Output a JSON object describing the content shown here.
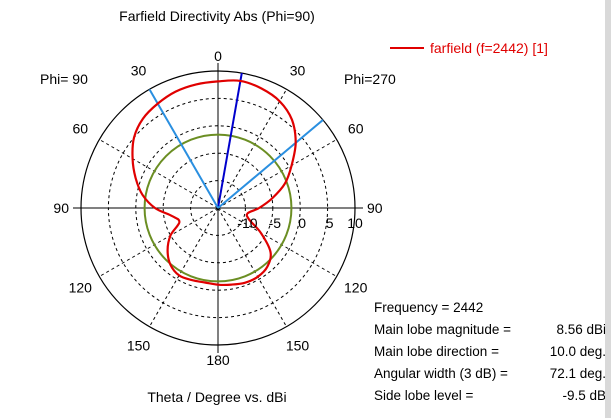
{
  "chart_data": {
    "type": "polar",
    "title": "Farfield Directivity Abs (Phi=90)",
    "footer": "Theta / Degree vs. dBi",
    "left_phi_label": "Phi= 90",
    "right_phi_label": "Phi=270",
    "angle_labels": [
      {
        "text": "0",
        "angle": 0
      },
      {
        "text": "30",
        "angle": 30
      },
      {
        "text": "60",
        "angle": 60
      },
      {
        "text": "90",
        "angle": 90
      },
      {
        "text": "120",
        "angle": 120
      },
      {
        "text": "150",
        "angle": 150
      },
      {
        "text": "180",
        "angle": 180
      },
      {
        "text": "150",
        "angle": -150
      },
      {
        "text": "120",
        "angle": -120
      },
      {
        "text": "90",
        "angle": -90
      },
      {
        "text": "60",
        "angle": -60
      },
      {
        "text": "30",
        "angle": -30
      }
    ],
    "radial_ticks": [
      "-10",
      "-5",
      "0",
      "5",
      "10"
    ],
    "rlim": [
      -15,
      10
    ],
    "grid": true,
    "legend": {
      "position": "top-right",
      "entries": [
        "farfield (f=2442) [1]"
      ]
    },
    "series": [
      {
        "name": "farfield (f=2442) [1]",
        "color": "#e00000",
        "theta": [
          0,
          10,
          20,
          30,
          40,
          50,
          60,
          70,
          80,
          90,
          100,
          110,
          120,
          130,
          140,
          150,
          160,
          170,
          180,
          -170,
          -160,
          -150,
          -140,
          -130,
          -120,
          -110,
          -100,
          -90,
          -80,
          -70,
          -60,
          -50,
          -40,
          -30,
          -20,
          -10
        ],
        "dBi": [
          8.1,
          8.56,
          8.2,
          7.5,
          6.0,
          3.5,
          0.5,
          -2.0,
          -5.0,
          -7.5,
          -9.5,
          -9.0,
          -6.0,
          -2.5,
          -1.0,
          -0.5,
          -0.5,
          -0.8,
          -1.0,
          -1.2,
          -1.0,
          -0.8,
          -1.5,
          -3.0,
          -5.0,
          -7.5,
          -6.5,
          -3.5,
          -1.0,
          1.0,
          3.0,
          5.0,
          6.3,
          7.0,
          7.6,
          7.9
        ]
      }
    ],
    "reference_circle": {
      "color": "#6b8e23",
      "dBi": -1.6
    },
    "markers": [
      {
        "name": "main-lobe-direction",
        "theta": 10,
        "color": "#0000cc"
      },
      {
        "name": "3db-width-edge",
        "theta": 50,
        "color": "#2a8fe0"
      },
      {
        "name": "3db-width-edge",
        "theta": -30,
        "color": "#2a8fe0"
      }
    ]
  },
  "info": [
    {
      "label": "Frequency = 2442",
      "value": ""
    },
    {
      "label": "Main lobe magnitude =",
      "value": "8.56 dBi"
    },
    {
      "label": "Main lobe direction =",
      "value": "10.0 deg."
    },
    {
      "label": "Angular width (3 dB) =",
      "value": "72.1 deg."
    },
    {
      "label": "Side lobe level =",
      "value": "-9.5 dB"
    }
  ]
}
